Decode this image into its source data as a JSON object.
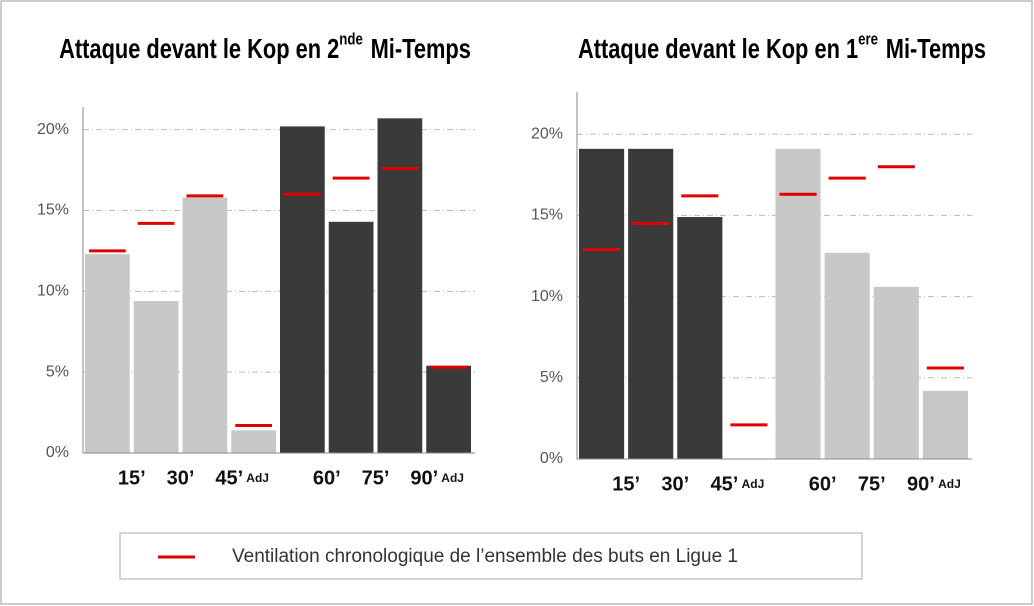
{
  "legend": {
    "label": "Ventilation chronologique de l’ensemble des buts en Ligue 1",
    "color": "#e00000"
  },
  "chart_data": [
    {
      "type": "bar",
      "title": [
        "Attaque devant le Kop en 2",
        "nde",
        "Mi-Temps"
      ],
      "categories": [
        "15’",
        "30’",
        "45’",
        "AdJ",
        "60’",
        "75’",
        "90’",
        "AdJ"
      ],
      "values": [
        12.3,
        9.4,
        15.8,
        1.4,
        20.2,
        14.3,
        20.7,
        5.4
      ],
      "colors": [
        "#c8c8c8",
        "#c8c8c8",
        "#c8c8c8",
        "#c8c8c8",
        "#3a3a3a",
        "#3a3a3a",
        "#3a3a3a",
        "#3a3a3a"
      ],
      "reference_values": [
        12.5,
        14.2,
        15.9,
        1.7,
        16.0,
        17.0,
        17.6,
        5.3
      ],
      "ylim": [
        0,
        21.4
      ],
      "yticks": [
        {
          "value": 0,
          "label": "0%"
        },
        {
          "value": 5,
          "label": "5%"
        },
        {
          "value": 10,
          "label": "10%"
        },
        {
          "value": 15,
          "label": "15%"
        },
        {
          "value": 20,
          "label": "20%"
        }
      ],
      "grid": true
    },
    {
      "type": "bar",
      "title": [
        "Attaque devant le Kop en 1",
        "ere",
        "Mi-Temps"
      ],
      "categories": [
        "15’",
        "30’",
        "45’",
        "AdJ",
        "60’",
        "75’",
        "90’",
        "AdJ"
      ],
      "values": [
        19.1,
        19.1,
        14.9,
        0,
        19.1,
        12.7,
        10.6,
        4.2
      ],
      "colors": [
        "#3a3a3a",
        "#3a3a3a",
        "#3a3a3a",
        "#3a3a3a",
        "#c8c8c8",
        "#c8c8c8",
        "#c8c8c8",
        "#c8c8c8"
      ],
      "reference_values": [
        12.9,
        14.5,
        16.2,
        2.1,
        16.3,
        17.3,
        18.0,
        5.6
      ],
      "ylim": [
        0,
        22.6
      ],
      "yticks": [
        {
          "value": 0,
          "label": "0%"
        },
        {
          "value": 5,
          "label": "5%"
        },
        {
          "value": 10,
          "label": "10%"
        },
        {
          "value": 15,
          "label": "15%"
        },
        {
          "value": 20,
          "label": "20%"
        }
      ],
      "grid": true
    }
  ]
}
